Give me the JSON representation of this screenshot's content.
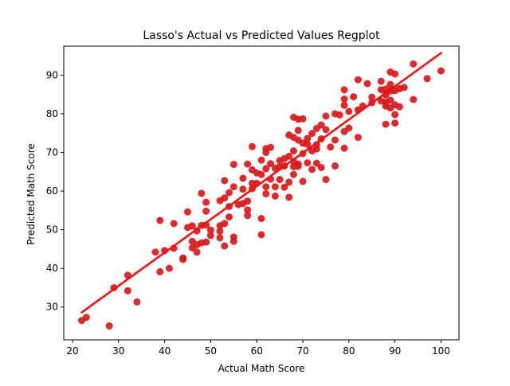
{
  "chart_data": {
    "type": "scatter",
    "title": "Lasso's Actual vs Predicted Values Regplot",
    "xlabel": "Actual Math Score",
    "ylabel": "Predicted Math Score",
    "xlim": [
      18.1,
      103.9
    ],
    "ylim": [
      21.5,
      97.5
    ],
    "x_ticks": [
      20,
      30,
      40,
      50,
      60,
      70,
      80,
      90,
      100
    ],
    "y_ticks": [
      30,
      40,
      50,
      60,
      70,
      80,
      90
    ],
    "grid": false,
    "legend": "none",
    "regression_line": {
      "x": [
        22,
        100
      ],
      "y": [
        28.6,
        95.7
      ]
    },
    "points": [
      [
        22,
        26.5
      ],
      [
        23,
        27.3
      ],
      [
        28,
        25.1
      ],
      [
        29,
        35.0
      ],
      [
        32,
        38.2
      ],
      [
        32,
        34.2
      ],
      [
        34,
        31.3
      ],
      [
        38,
        44.2
      ],
      [
        39,
        52.4
      ],
      [
        39,
        39.1
      ],
      [
        40,
        44.6
      ],
      [
        41,
        40.0
      ],
      [
        42,
        51.6
      ],
      [
        42,
        45.2
      ],
      [
        44,
        42.7
      ],
      [
        44,
        42.3
      ],
      [
        45,
        54.6
      ],
      [
        45,
        50.6
      ],
      [
        46,
        51.0
      ],
      [
        46,
        47.0
      ],
      [
        46,
        45.3
      ],
      [
        47,
        49.7
      ],
      [
        47,
        46.1
      ],
      [
        47,
        44.2
      ],
      [
        48,
        59.4
      ],
      [
        48,
        51.1
      ],
      [
        48,
        46.6
      ],
      [
        49,
        57.1
      ],
      [
        49,
        51.2
      ],
      [
        49,
        54.8
      ],
      [
        49,
        46.8
      ],
      [
        50,
        48.5
      ],
      [
        50,
        49.9
      ],
      [
        52,
        57.5
      ],
      [
        52,
        51.0
      ],
      [
        52,
        49.6
      ],
      [
        52,
        47.9
      ],
      [
        53,
        62.7
      ],
      [
        53,
        58.2
      ],
      [
        53,
        51.6
      ],
      [
        53,
        45.8
      ],
      [
        54,
        59.6
      ],
      [
        54,
        53.3
      ],
      [
        54,
        56.0
      ],
      [
        55,
        66.9
      ],
      [
        55,
        61.1
      ],
      [
        55,
        48.1
      ],
      [
        55,
        47.0
      ],
      [
        56,
        56.5
      ],
      [
        57,
        63.3
      ],
      [
        57,
        60.5
      ],
      [
        57,
        56.8
      ],
      [
        58,
        67.0
      ],
      [
        58,
        57.4
      ],
      [
        58,
        53.7
      ],
      [
        58,
        55.1
      ],
      [
        59,
        71.5
      ],
      [
        59,
        65.5
      ],
      [
        59,
        62.0
      ],
      [
        59,
        60.6
      ],
      [
        60,
        64.7
      ],
      [
        60,
        62.0
      ],
      [
        61,
        68.0
      ],
      [
        61,
        64.3
      ],
      [
        61,
        52.9
      ],
      [
        61,
        48.7
      ],
      [
        62,
        71.0
      ],
      [
        62,
        70.0
      ],
      [
        62,
        65.8
      ],
      [
        62,
        61.1
      ],
      [
        62,
        59.3
      ],
      [
        63,
        71.3
      ],
      [
        63,
        67.1
      ],
      [
        63,
        63.1
      ],
      [
        64,
        65.9
      ],
      [
        64,
        61.1
      ],
      [
        64,
        58.7
      ],
      [
        65,
        67.9
      ],
      [
        65,
        66.3
      ],
      [
        65,
        63.0
      ],
      [
        66,
        68.4
      ],
      [
        66,
        66.5
      ],
      [
        66,
        61.0
      ],
      [
        67,
        74.5
      ],
      [
        67,
        69.0
      ],
      [
        67,
        62.3
      ],
      [
        67,
        58.4
      ],
      [
        68,
        79.1
      ],
      [
        68,
        73.9
      ],
      [
        68,
        70.4
      ],
      [
        68,
        67.7
      ],
      [
        68,
        66.3
      ],
      [
        68,
        64.3
      ],
      [
        69,
        78.6
      ],
      [
        69,
        75.7
      ],
      [
        69,
        73.2
      ],
      [
        69,
        67.0
      ],
      [
        69,
        66.4
      ],
      [
        70,
        78.7
      ],
      [
        70,
        72.4
      ],
      [
        70,
        69.7
      ],
      [
        70,
        62.5
      ],
      [
        71,
        73.6
      ],
      [
        71,
        72.1
      ],
      [
        71,
        67.3
      ],
      [
        72,
        74.9
      ],
      [
        72,
        70.4
      ],
      [
        72,
        65.6
      ],
      [
        73,
        76.2
      ],
      [
        73,
        72.0
      ],
      [
        73,
        70.9
      ],
      [
        73,
        67.2
      ],
      [
        74,
        77.1
      ],
      [
        74,
        73.5
      ],
      [
        74,
        66.1
      ],
      [
        75,
        79.4
      ],
      [
        75,
        75.9
      ],
      [
        75,
        63.0
      ],
      [
        76,
        71.4
      ],
      [
        77,
        80.0
      ],
      [
        77,
        73.2
      ],
      [
        77,
        66.5
      ],
      [
        78,
        79.7
      ],
      [
        79,
        86.2
      ],
      [
        79,
        83.8
      ],
      [
        79,
        82.2
      ],
      [
        79,
        75.4
      ],
      [
        79,
        71.1
      ],
      [
        80,
        80.6
      ],
      [
        80,
        76.3
      ],
      [
        81,
        84.4
      ],
      [
        82,
        88.8
      ],
      [
        82,
        81.0
      ],
      [
        82,
        73.9
      ],
      [
        83,
        82.0
      ],
      [
        84,
        87.8
      ],
      [
        85,
        84.3
      ],
      [
        85,
        82.9
      ],
      [
        87,
        88.4
      ],
      [
        87,
        86.2
      ],
      [
        87,
        83.3
      ],
      [
        88,
        86.4
      ],
      [
        88,
        84.9
      ],
      [
        88,
        83.0
      ],
      [
        88,
        82.0
      ],
      [
        88,
        77.3
      ],
      [
        89,
        90.8
      ],
      [
        89,
        87.6
      ],
      [
        89,
        85.9
      ],
      [
        89,
        83.5
      ],
      [
        89,
        81.5
      ],
      [
        90,
        90.3
      ],
      [
        90,
        86.0
      ],
      [
        90,
        82.3
      ],
      [
        90,
        79.8
      ],
      [
        90,
        77.6
      ],
      [
        91,
        86.5
      ],
      [
        91,
        81.8
      ],
      [
        92,
        86.8
      ],
      [
        94,
        92.9
      ],
      [
        94,
        83.7
      ],
      [
        97,
        89.1
      ],
      [
        100,
        91.1
      ]
    ],
    "colors": {
      "point": "#d7191c",
      "line": "#ee1111",
      "axes": "#000000"
    }
  }
}
